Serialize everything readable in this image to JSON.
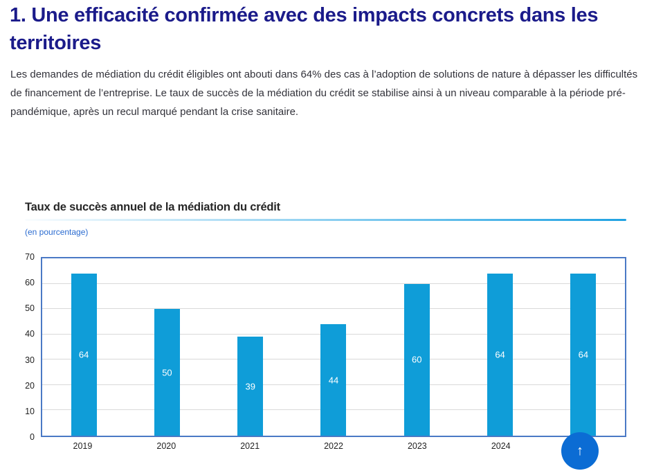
{
  "page": {
    "title": "1. Une efficacité confirmée avec des impacts concrets dans les territoires",
    "intro": "Les demandes de médiation du crédit éligibles ont abouti dans 64% des cas à l’adoption de solutions de nature à dépasser les difficultés de financement de l’entreprise. Le taux de succès de la médiation du crédit se stabilise ainsi à un niveau comparable à la période pré-pandémique, après un recul marqué pendant la crise sanitaire."
  },
  "colors": {
    "heading": "#1b1b8a",
    "body_text": "#32323a",
    "bar": "#0f9dd8",
    "plot_border": "#4a79c5",
    "gridline": "#d9d9d9",
    "unit_label": "#2a6bd0",
    "fab": "#0b6cd4",
    "underline_end": "#20a2e2"
  },
  "back_to_top": {
    "icon": "up-arrow-icon",
    "glyph": "↑"
  },
  "chart_data": {
    "type": "bar",
    "title": "Taux de succès annuel de la médiation du crédit",
    "unit_label": "(en pourcentage)",
    "categories": [
      "2019",
      "2020",
      "2021",
      "2022",
      "2023",
      "2024",
      ""
    ],
    "values": [
      64,
      50,
      39,
      44,
      60,
      64,
      64
    ],
    "value_labels_shown": true,
    "value_label_color": "#ffffff",
    "bar_color": "#0f9dd8",
    "xlabel": "",
    "ylabel": "",
    "ylim": [
      0,
      70
    ],
    "yticks": [
      0,
      10,
      20,
      30,
      40,
      50,
      60,
      70
    ],
    "grid": true,
    "legend": false
  }
}
